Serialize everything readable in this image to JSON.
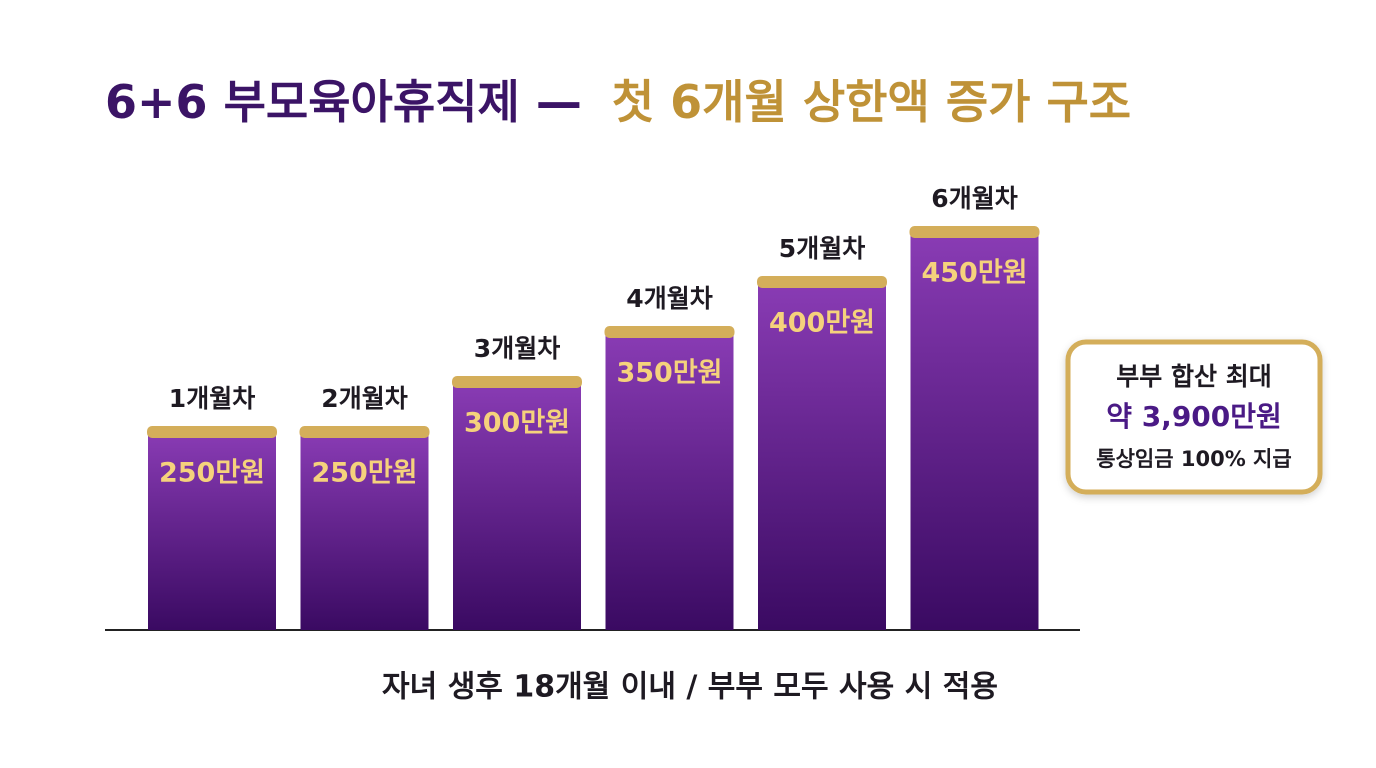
{
  "chart_data": {
    "type": "bar",
    "title_parts": [
      "6+6 부모육아휴직제 —",
      "첫 6개월 상한액 증가 구조"
    ],
    "categories": [
      "1개월차",
      "2개월차",
      "3개월차",
      "4개월차",
      "5개월차",
      "6개월차"
    ],
    "values": [
      250,
      250,
      300,
      350,
      400,
      450
    ],
    "value_labels": [
      "250만원",
      "250만원",
      "300만원",
      "350만원",
      "400만원",
      "450만원"
    ],
    "ylim": [
      50,
      500
    ],
    "color": "#5a1a8c",
    "cap_color": "#d4ae5a",
    "annotations": [
      "부부 합산 최대",
      "약 3,900만원",
      "통상임금 100% 지급"
    ],
    "note": "자녀 생후 18개월 이내 / 부부 모두 사용 시 적용"
  }
}
